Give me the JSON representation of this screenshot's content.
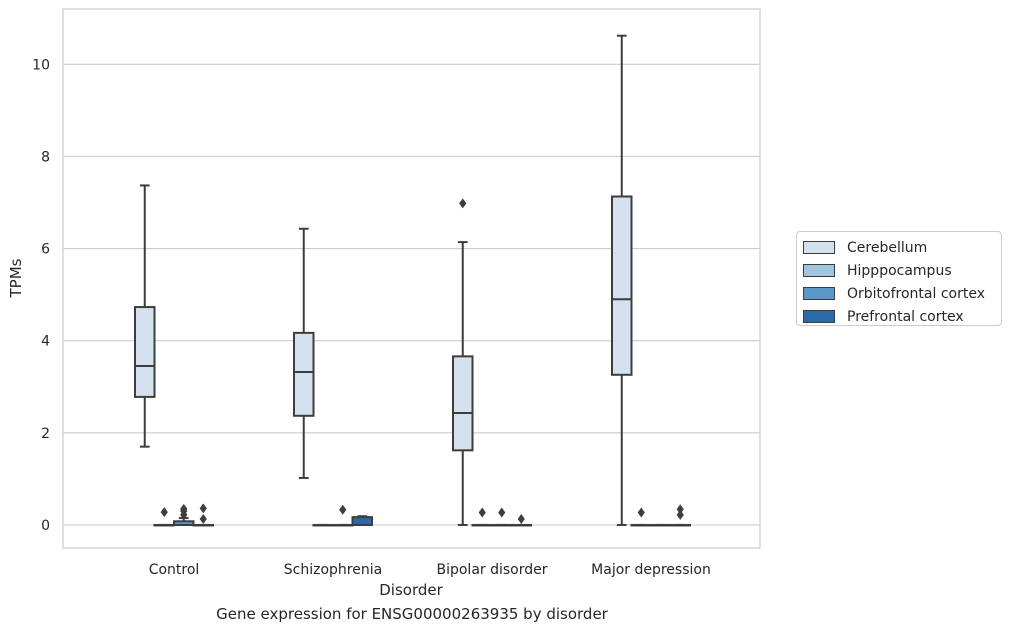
{
  "caption": "Gene expression for ENSG00000263935 by disorder",
  "chart_data": {
    "type": "box",
    "xlabel": "Disorder",
    "ylabel": "TPMs",
    "ylim": [
      -0.5,
      11.2
    ],
    "yticks": [
      0,
      2,
      4,
      6,
      8,
      10
    ],
    "grid": "horizontal",
    "legend_position": "right",
    "categories": [
      "Control",
      "Schizophrenia",
      "Bipolar disorder",
      "Major depression"
    ],
    "series": [
      {
        "name": "Cerebellum",
        "color": "#d4e2f0",
        "boxes": [
          {
            "whisker_low": 1.7,
            "q1": 2.78,
            "median": 3.45,
            "q3": 4.73,
            "whisker_high": 7.37,
            "outliers": []
          },
          {
            "whisker_low": 1.02,
            "q1": 2.37,
            "median": 3.32,
            "q3": 4.17,
            "whisker_high": 6.43,
            "outliers": []
          },
          {
            "whisker_low": 0.0,
            "q1": 1.62,
            "median": 2.43,
            "q3": 3.66,
            "whisker_high": 6.14,
            "outliers": [
              6.98
            ]
          },
          {
            "whisker_low": 0.0,
            "q1": 3.26,
            "median": 4.9,
            "q3": 7.13,
            "whisker_high": 10.62,
            "outliers": []
          }
        ]
      },
      {
        "name": "Hipppocampus",
        "color": "#9fc5df",
        "boxes": [
          {
            "whisker_low": 0.0,
            "q1": 0.0,
            "median": 0.0,
            "q3": 0.0,
            "whisker_high": 0.0,
            "outliers": [
              0.28
            ]
          },
          {
            "whisker_low": 0.0,
            "q1": 0.0,
            "median": 0.0,
            "q3": 0.0,
            "whisker_high": 0.0,
            "outliers": []
          },
          {
            "whisker_low": 0.0,
            "q1": 0.0,
            "median": 0.0,
            "q3": 0.0,
            "whisker_high": 0.0,
            "outliers": [
              0.27
            ]
          },
          {
            "whisker_low": 0.0,
            "q1": 0.0,
            "median": 0.0,
            "q3": 0.0,
            "whisker_high": 0.0,
            "outliers": [
              0.27
            ]
          }
        ]
      },
      {
        "name": "Orbitofrontal cortex",
        "color": "#5b98c9",
        "boxes": [
          {
            "whisker_low": 0.0,
            "q1": 0.0,
            "median": 0.0,
            "q3": 0.08,
            "whisker_high": 0.15,
            "outliers": [
              0.22,
              0.3,
              0.35
            ]
          },
          {
            "whisker_low": 0.0,
            "q1": 0.0,
            "median": 0.0,
            "q3": 0.0,
            "whisker_high": 0.0,
            "outliers": [
              0.33
            ]
          },
          {
            "whisker_low": 0.0,
            "q1": 0.0,
            "median": 0.0,
            "q3": 0.0,
            "whisker_high": 0.0,
            "outliers": [
              0.27
            ]
          },
          {
            "whisker_low": 0.0,
            "q1": 0.0,
            "median": 0.0,
            "q3": 0.0,
            "whisker_high": 0.0,
            "outliers": []
          }
        ]
      },
      {
        "name": "Prefrontal cortex",
        "color": "#2b6aa8",
        "boxes": [
          {
            "whisker_low": 0.0,
            "q1": 0.0,
            "median": 0.0,
            "q3": 0.0,
            "whisker_high": 0.0,
            "outliers": [
              0.13,
              0.36
            ]
          },
          {
            "whisker_low": 0.0,
            "q1": 0.0,
            "median": 0.0,
            "q3": 0.17,
            "whisker_high": 0.19,
            "outliers": []
          },
          {
            "whisker_low": 0.0,
            "q1": 0.0,
            "median": 0.0,
            "q3": 0.0,
            "whisker_high": 0.0,
            "outliers": [
              0.13
            ]
          },
          {
            "whisker_low": 0.0,
            "q1": 0.0,
            "median": 0.0,
            "q3": 0.0,
            "whisker_high": 0.0,
            "outliers": [
              0.22,
              0.34
            ]
          }
        ]
      }
    ]
  }
}
